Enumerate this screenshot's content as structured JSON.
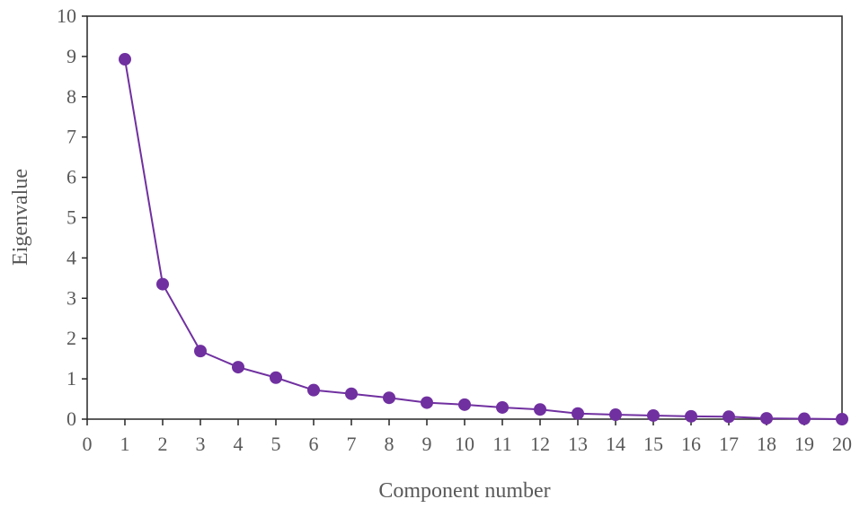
{
  "chart_data": {
    "type": "line",
    "xlabel": "Component number",
    "ylabel": "Eigenvalue",
    "xlim": [
      0,
      20
    ],
    "ylim": [
      0,
      10
    ],
    "xticks": [
      "0",
      "1",
      "2",
      "3",
      "4",
      "5",
      "6",
      "7",
      "8",
      "9",
      "10",
      "11",
      "12",
      "13",
      "14",
      "15",
      "16",
      "17",
      "18",
      "19",
      "20"
    ],
    "yticks": [
      "0",
      "1",
      "2",
      "3",
      "4",
      "5",
      "6",
      "7",
      "8",
      "9",
      "10"
    ],
    "grid": false,
    "legend": false,
    "series": [
      {
        "color": "#7030A0",
        "marker": "circle",
        "x": [
          1,
          2,
          3,
          4,
          5,
          6,
          7,
          8,
          9,
          10,
          11,
          12,
          13,
          14,
          15,
          16,
          17,
          18,
          19,
          20
        ],
        "values": [
          8.93,
          3.35,
          1.69,
          1.29,
          1.03,
          0.72,
          0.63,
          0.53,
          0.41,
          0.36,
          0.29,
          0.24,
          0.14,
          0.11,
          0.09,
          0.07,
          0.06,
          0.02,
          0.01,
          0.0
        ]
      }
    ]
  }
}
